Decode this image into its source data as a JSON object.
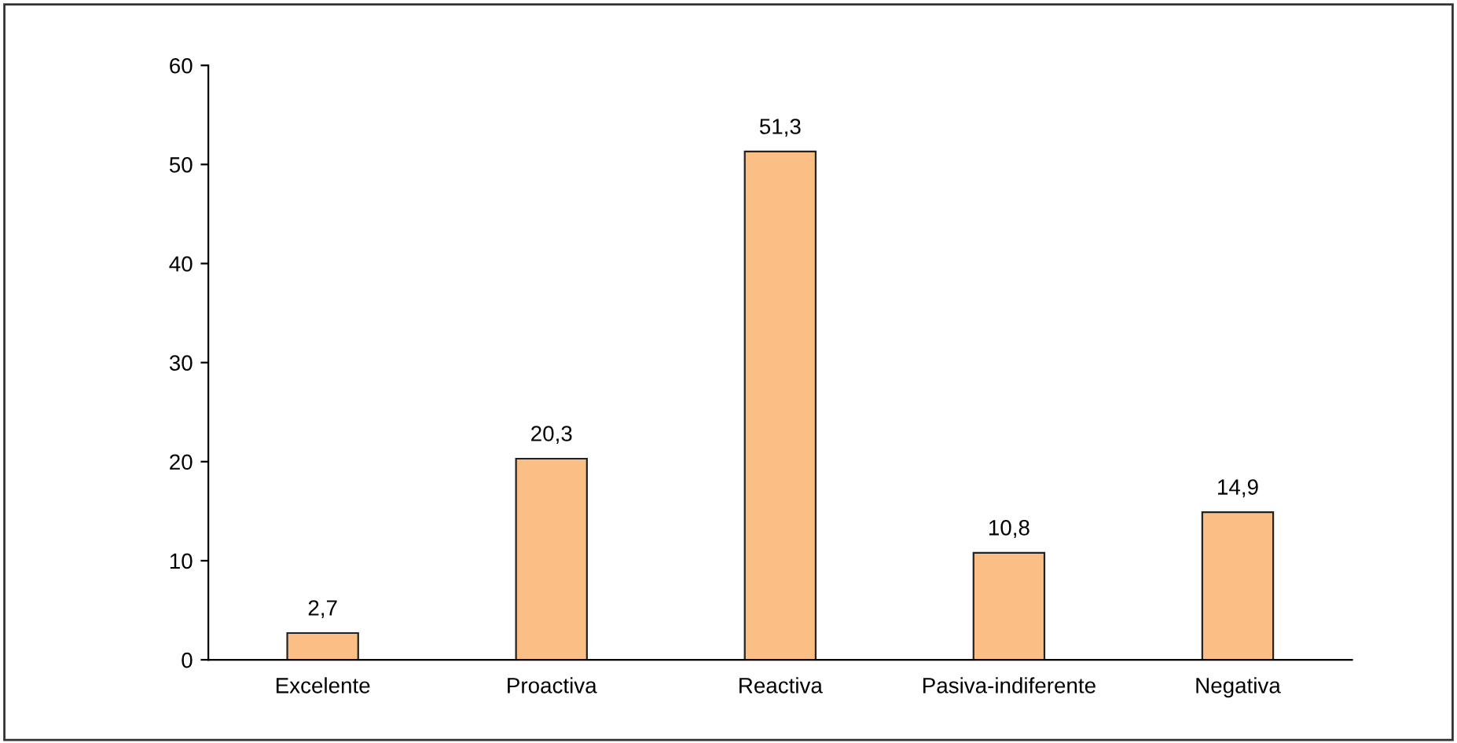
{
  "chart_data": {
    "type": "bar",
    "categories": [
      "Excelente",
      "Proactiva",
      "Reactiva",
      "Pasiva-indiferente",
      "Negativa"
    ],
    "values": [
      2.7,
      20.3,
      51.3,
      10.8,
      14.9
    ],
    "value_labels": [
      "2,7",
      "20,3",
      "51,3",
      "10,8",
      "14,9"
    ],
    "color": "#fbbf86",
    "ylim": [
      0,
      60
    ],
    "yticks": [
      0,
      10,
      20,
      30,
      40,
      50,
      60
    ],
    "grid": false
  }
}
